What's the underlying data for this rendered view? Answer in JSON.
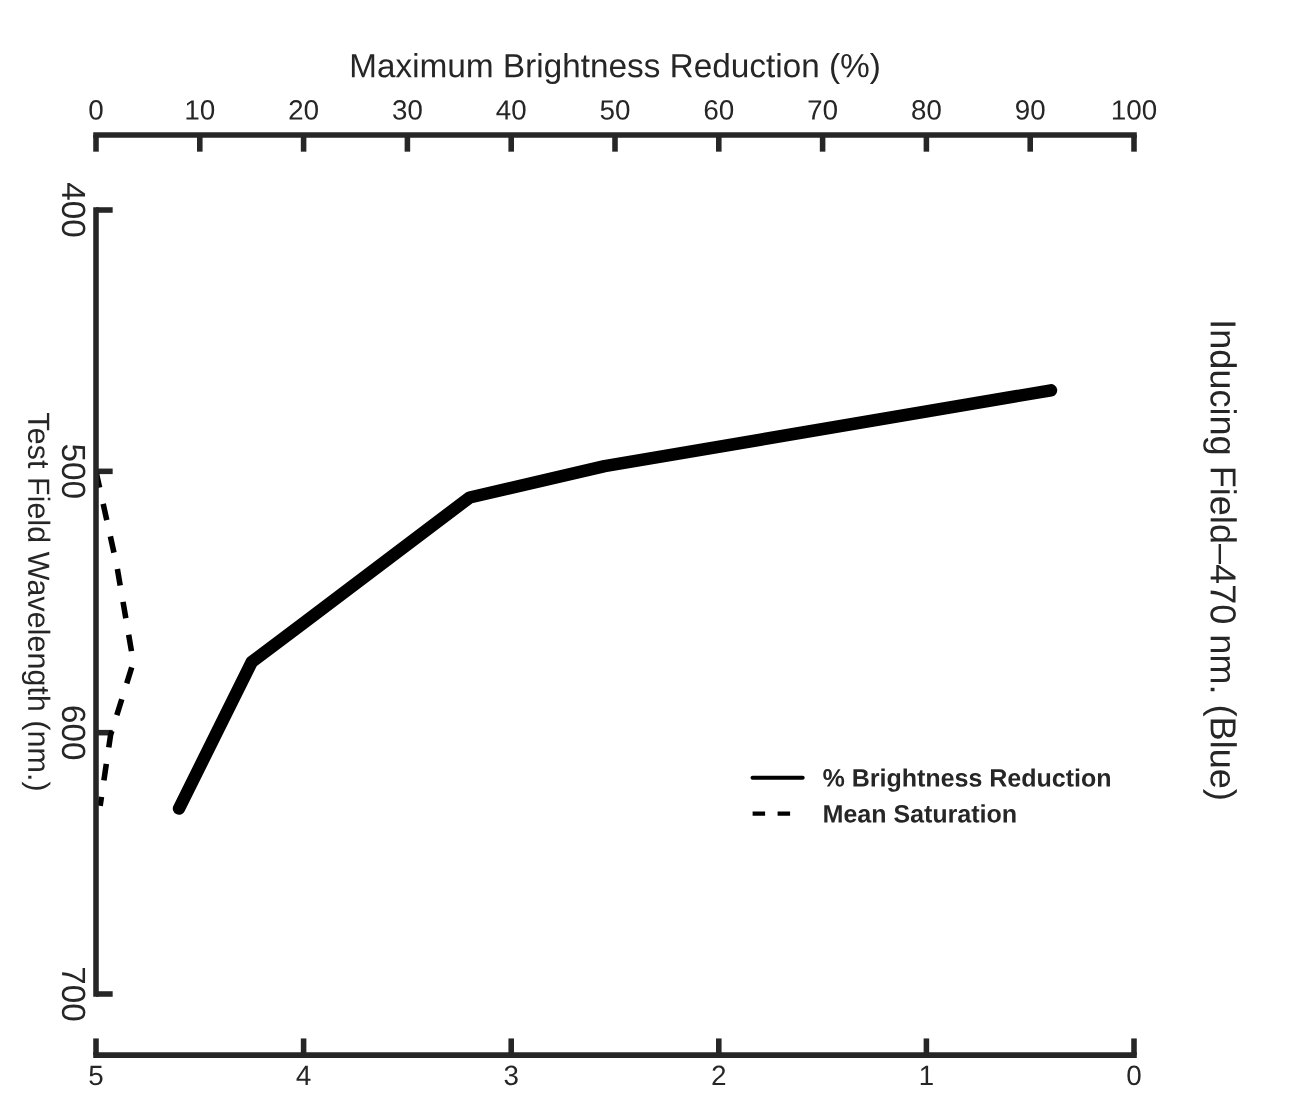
{
  "chart_data": {
    "type": "line",
    "orientation": "horizontal",
    "title": "Inducing Field–470 nm. (Blue)",
    "x2label": "Maximum Brightness Reduction (%)",
    "ylabel": "Test Field Wavelength (nm.)",
    "ylim": [
      700,
      400
    ],
    "yticks": [
      400,
      500,
      600,
      700
    ],
    "xlim": [
      5,
      0
    ],
    "xticks": [
      5,
      4,
      3,
      2,
      1,
      0
    ],
    "x2lim": [
      0,
      100
    ],
    "x2ticks": [
      0,
      10,
      20,
      30,
      40,
      50,
      60,
      70,
      80,
      90,
      100
    ],
    "legend": "right",
    "grid": false,
    "series": [
      {
        "name": "% Brightness Reduction",
        "color": "#000000",
        "axis": "x2",
        "line_style": "solid",
        "x": [
          469,
          498,
          510,
          558,
          573,
          629
        ],
        "values": [
          92,
          49,
          36,
          20,
          15,
          8
        ]
      },
      {
        "name": "Mean Saturation",
        "color": "#000000",
        "line_style": "dashed",
        "x": [
          500,
          536,
          573,
          601,
          628
        ],
        "values": [
          5.0,
          4.9,
          4.82,
          4.93,
          4.98
        ]
      }
    ]
  }
}
